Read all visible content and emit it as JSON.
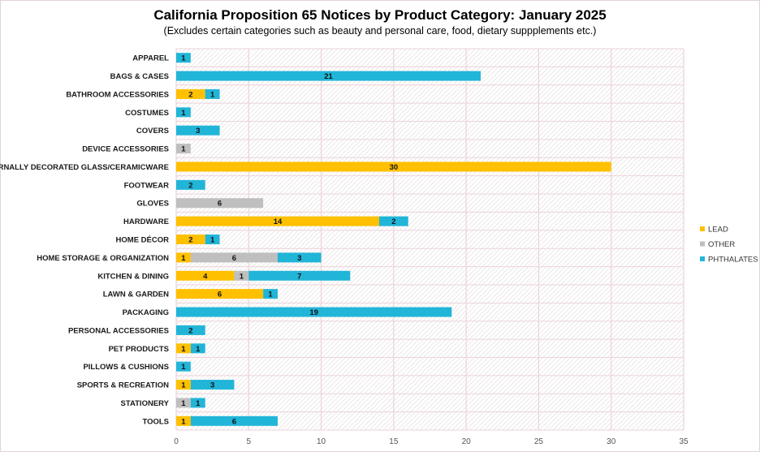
{
  "chart_data": {
    "type": "bar",
    "orientation": "horizontal",
    "stacked": true,
    "title": "California  Proposition  65 Notices by Product Category: January 2025",
    "subtitle": "(Excludes  certain  categories  such as beauty and personal care, food, dietary suppplements etc.)",
    "categories": [
      "APPAREL",
      "BAGS & CASES",
      "BATHROOM ACCESSORIES",
      "COSTUMES",
      "COVERS",
      "DEVICE ACCESSORIES",
      "EXTERNALLY DECORATED GLASS/CERAMICWARE",
      "FOOTWEAR",
      "GLOVES",
      "HARDWARE",
      "HOME DÉCOR",
      "HOME STORAGE & ORGANIZATION",
      "KITCHEN & DINING",
      "LAWN & GARDEN",
      "PACKAGING",
      "PERSONAL ACCESSORIES",
      "PET PRODUCTS",
      "PILLOWS & CUSHIONS",
      "SPORTS & RECREATION",
      "STATIONERY",
      "TOOLS"
    ],
    "series": [
      {
        "name": "LEAD",
        "color": "#ffc000",
        "values": [
          null,
          null,
          2,
          null,
          null,
          null,
          30,
          null,
          null,
          14,
          2,
          1,
          4,
          6,
          null,
          null,
          1,
          null,
          1,
          null,
          1
        ]
      },
      {
        "name": "OTHER",
        "color": "#bfbfbf",
        "values": [
          null,
          null,
          null,
          null,
          null,
          1,
          null,
          null,
          6,
          null,
          null,
          6,
          1,
          null,
          null,
          null,
          null,
          null,
          null,
          1,
          null
        ]
      },
      {
        "name": "PHTHALATES",
        "color": "#21b5d8",
        "values": [
          1,
          21,
          1,
          1,
          3,
          null,
          null,
          2,
          null,
          2,
          1,
          3,
          7,
          1,
          19,
          2,
          1,
          1,
          3,
          1,
          6
        ]
      }
    ],
    "xlim": [
      0,
      35
    ],
    "xticks": [
      0,
      5,
      10,
      15,
      20,
      25,
      30,
      35
    ],
    "grid": true,
    "legend": "right",
    "data_labels": true
  }
}
